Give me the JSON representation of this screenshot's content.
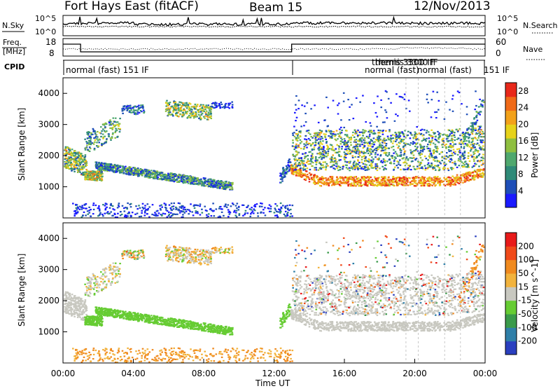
{
  "header": {
    "station": "Fort Hays East (fitACF)",
    "beam": "Beam 15",
    "date": "12/Nov/2013"
  },
  "noise_panel": {
    "left_label": "N.Sky",
    "right_label": "N.Search",
    "left_ticks": [
      "10^5",
      "10^0"
    ],
    "right_ticks": [
      "10^5",
      "10^0"
    ]
  },
  "freq_panel": {
    "left_label_1": "Freq.",
    "left_label_2": "[MHz]",
    "right_label": "Nave",
    "left_ticks": [
      "18",
      "8"
    ],
    "right_ticks": [
      "60",
      "0"
    ]
  },
  "cpid_panel": {
    "label": "CPID",
    "segments": [
      "normal (fast) 151 IF",
      "themis 3300 IF",
      "normal (fast) 151 IF"
    ],
    "overlap_text": "themis 3300 IF",
    "normal_prefix": "normal (fast)",
    "normal_suffix": "151 IF"
  },
  "chart_data": [
    {
      "type": "heatmap",
      "name": "power",
      "ylabel": "Slant Range [km]",
      "y_ticks": [
        "1000",
        "2000",
        "3000",
        "4000"
      ],
      "colorbar_label": "Power [dB]",
      "colorbar_ticks": [
        "4",
        "8",
        "12",
        "16",
        "20",
        "24",
        "28"
      ],
      "colorbar_colors": [
        "#1a1aff",
        "#1f4fb8",
        "#2f8a78",
        "#4fa86e",
        "#8fbf40",
        "#e6d21a",
        "#f2a11a",
        "#f06a18",
        "#e8281a"
      ],
      "value_range": [
        0,
        30
      ]
    },
    {
      "type": "heatmap",
      "name": "velocity",
      "ylabel": "Slant Range [km]",
      "y_ticks": [
        "1000",
        "2000",
        "3000",
        "4000"
      ],
      "colorbar_label": "Velocity [m s^-1]",
      "colorbar_ticks": [
        "200",
        "100",
        "50",
        "15",
        "-15",
        "-50",
        "-100",
        "-200"
      ],
      "colorbar_colors": [
        "#2a3fbf",
        "#2f7fa8",
        "#3a9a4a",
        "#66cc33",
        "#c8c8c0",
        "#f2b33d",
        "#f08a1f",
        "#f04a1a",
        "#e81a1a"
      ],
      "value_range": [
        -250,
        250
      ]
    }
  ],
  "x_axis": {
    "label": "Time UT",
    "ticks": [
      "00:00",
      "04:00",
      "08:00",
      "12:00",
      "16:00",
      "20:00",
      "00:00"
    ]
  },
  "colors": {
    "frame": "#000000",
    "background": "#ffffff"
  }
}
